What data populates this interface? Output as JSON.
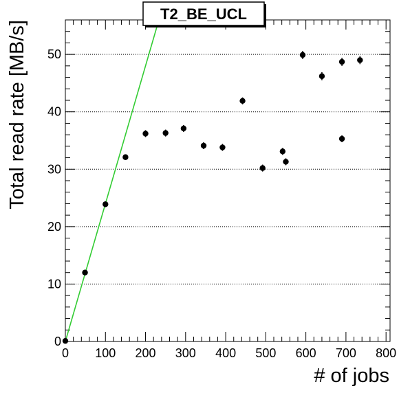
{
  "chart_data": {
    "type": "scatter",
    "title": "T2_BE_UCL",
    "xlabel": "# of jobs",
    "ylabel": "Total read rate [MB/s]",
    "xlim": [
      0,
      810
    ],
    "ylim": [
      0,
      56
    ],
    "xticks": [
      "0",
      "100",
      "200",
      "300",
      "400",
      "500",
      "600",
      "700",
      "800"
    ],
    "yticks": [
      "0",
      "10",
      "20",
      "30",
      "40",
      "50"
    ],
    "grid": "horizontal dotted at major y ticks",
    "colors": {
      "points": "#000000",
      "fit_line": "#33cc33",
      "grid": "#000000"
    },
    "fit_line": {
      "slope_mb_per_job": 0.24,
      "intercept": 0
    },
    "points": [
      {
        "x": 0,
        "y": 0.1,
        "yerr": 0.4
      },
      {
        "x": 49,
        "y": 12.0,
        "yerr": 0.5
      },
      {
        "x": 100,
        "y": 23.9,
        "yerr": 0.5
      },
      {
        "x": 150,
        "y": 32.1,
        "yerr": 0.5
      },
      {
        "x": 200,
        "y": 36.2,
        "yerr": 0.6
      },
      {
        "x": 250,
        "y": 36.3,
        "yerr": 0.6
      },
      {
        "x": 295,
        "y": 37.1,
        "yerr": 0.6
      },
      {
        "x": 345,
        "y": 34.1,
        "yerr": 0.6
      },
      {
        "x": 392,
        "y": 33.8,
        "yerr": 0.6
      },
      {
        "x": 442,
        "y": 41.9,
        "yerr": 0.6
      },
      {
        "x": 492,
        "y": 30.2,
        "yerr": 0.6
      },
      {
        "x": 542,
        "y": 33.1,
        "yerr": 0.6
      },
      {
        "x": 550,
        "y": 31.3,
        "yerr": 0.6
      },
      {
        "x": 592,
        "y": 49.9,
        "yerr": 0.7
      },
      {
        "x": 640,
        "y": 46.2,
        "yerr": 0.7
      },
      {
        "x": 690,
        "y": 48.7,
        "yerr": 0.7
      },
      {
        "x": 690,
        "y": 35.3,
        "yerr": 0.6
      },
      {
        "x": 735,
        "y": 49.0,
        "yerr": 0.7
      }
    ]
  }
}
